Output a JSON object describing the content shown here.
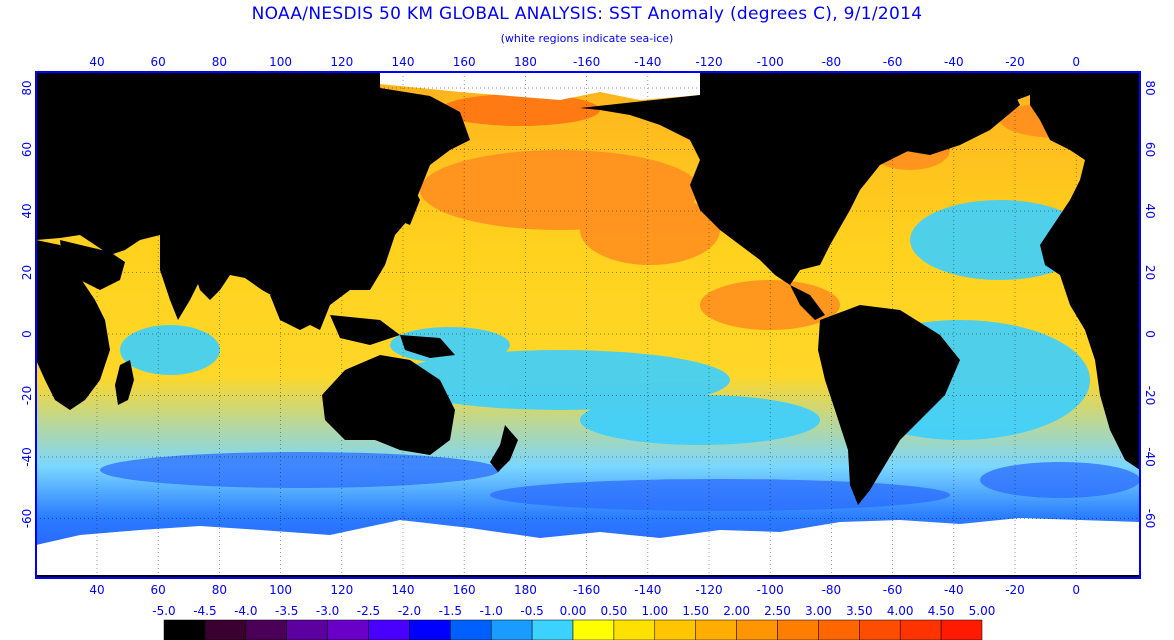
{
  "title": "NOAA/NESDIS 50 KM GLOBAL ANALYSIS: SST Anomaly (degrees C), 9/1/2014",
  "subtitle": "(white regions indicate sea-ice)",
  "map": {
    "lon_labels": [
      "40",
      "60",
      "80",
      "100",
      "120",
      "140",
      "160",
      "180",
      "-160",
      "-140",
      "-120",
      "-100",
      "-80",
      "-60",
      "-40",
      "-20",
      "0"
    ],
    "lat_labels": [
      "80",
      "60",
      "40",
      "20",
      "0",
      "-20",
      "-40",
      "-60"
    ],
    "colors": {
      "ocean_warm": "#ffd21e",
      "ocean_hot": "#ff8c1e",
      "ocean_cool": "#3ccfff",
      "ocean_cold": "#2a55ff",
      "land": "#000000",
      "sea_ice": "#ffffff",
      "frame": "#0000ff"
    }
  },
  "colorbar": {
    "labels": [
      "-5.0",
      "-4.5",
      "-4.0",
      "-3.5",
      "-3.0",
      "-2.5",
      "-2.0",
      "-1.5",
      "-1.0",
      "-0.5",
      "0.00",
      "0.50",
      "1.00",
      "1.50",
      "2.00",
      "2.50",
      "3.00",
      "3.50",
      "4.00",
      "4.50",
      "5.00"
    ],
    "colors": [
      "#000000",
      "#3a0030",
      "#4b0057",
      "#5c00a0",
      "#6a00c8",
      "#4a00ff",
      "#0000ff",
      "#0060ff",
      "#1a9cff",
      "#3cd2ff",
      "#ffff00",
      "#ffe100",
      "#ffc600",
      "#ffad00",
      "#ff9500",
      "#ff7e00",
      "#ff6600",
      "#ff4d00",
      "#ff3300",
      "#ff1a00"
    ]
  }
}
